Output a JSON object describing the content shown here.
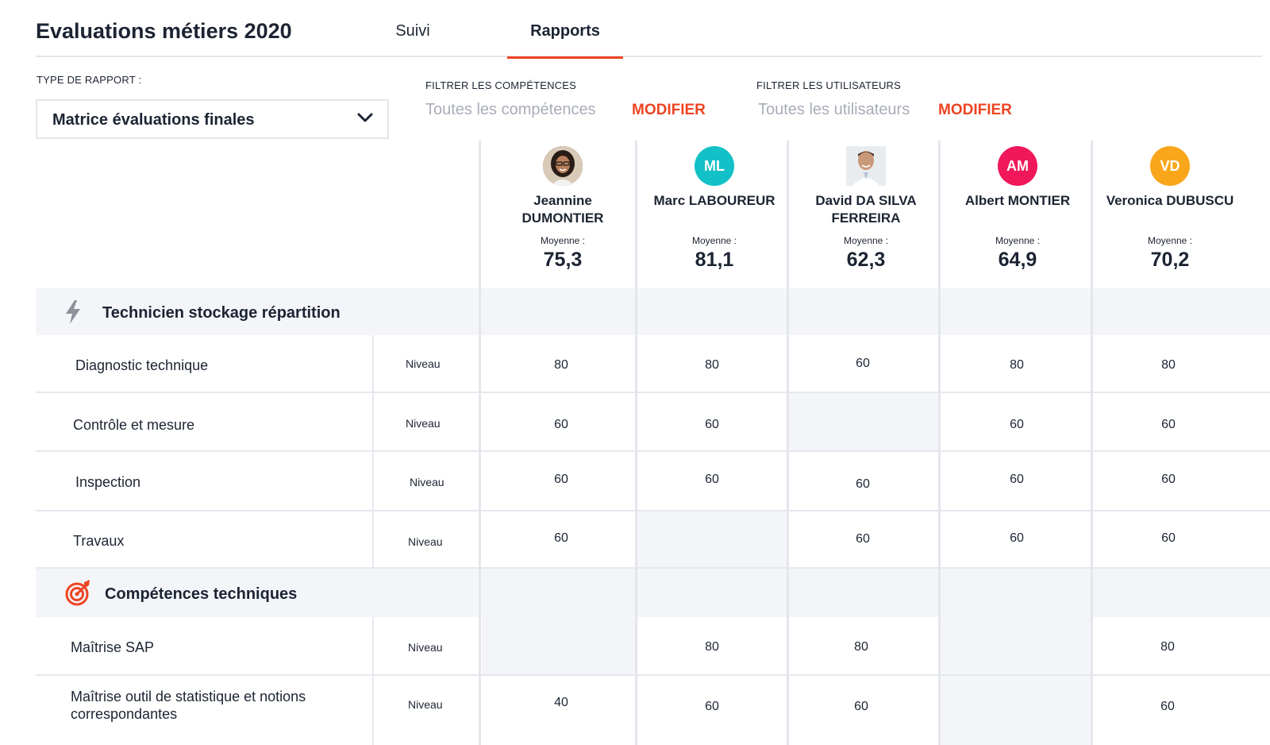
{
  "header": {
    "title": "Evaluations métiers 2020",
    "tabs": [
      {
        "label": "Suivi",
        "active": false
      },
      {
        "label": "Rapports",
        "active": true
      }
    ]
  },
  "filters": {
    "report_type_label": "TYPE DE RAPPORT :",
    "report_type_value": "Matrice évaluations finales",
    "skills_label": "FILTRER LES COMPÉTENCES",
    "skills_value": "Toutes les compétences",
    "users_label": "FILTRER LES UTILISATEURS",
    "users_value": "Toutes les utilisateurs",
    "modify_label": "MODIFIER"
  },
  "colors": {
    "accent": "#ee4422",
    "avatar_ml": "#12c0c7",
    "avatar_am": "#f0185a",
    "avatar_vd": "#f9a61b"
  },
  "users": [
    {
      "name": "Jeannine DUMONTIER",
      "initials": "",
      "avatar": "photo-female",
      "avg_label": "Moyenne :",
      "avg": "75,3"
    },
    {
      "name": "Marc LABOUREUR",
      "initials": "ML",
      "avatar": "initials",
      "avg_label": "Moyenne :",
      "avg": "81,1"
    },
    {
      "name": "David DA SILVA FERREIRA",
      "initials": "",
      "avatar": "photo-male",
      "avg_label": "Moyenne :",
      "avg": "62,3"
    },
    {
      "name": "Albert MONTIER",
      "initials": "AM",
      "avatar": "initials",
      "avg_label": "Moyenne :",
      "avg": "64,9"
    },
    {
      "name": "Veronica DUBUSCU",
      "initials": "VD",
      "avatar": "initials",
      "avg_label": "Moyenne :",
      "avg": "70,2"
    }
  ],
  "groups": [
    {
      "title": "Technicien stockage répartition",
      "icon": "lightning-icon",
      "skills": [
        {
          "name": "Diagnostic technique",
          "level_label": "Niveau",
          "values": [
            "80",
            "80",
            "60",
            "80",
            "80"
          ]
        },
        {
          "name": "Contrôle et mesure",
          "level_label": "Niveau",
          "values": [
            "60",
            "60",
            "",
            "60",
            "60"
          ]
        },
        {
          "name": "Inspection",
          "level_label": "Niveau",
          "values": [
            "60",
            "60",
            "60",
            "60",
            "60"
          ]
        },
        {
          "name": "Travaux",
          "level_label": "Niveau",
          "values": [
            "60",
            "",
            "60",
            "60",
            "60"
          ]
        }
      ]
    },
    {
      "title": "Compétences techniques",
      "icon": "target-icon",
      "skills": [
        {
          "name": "Maîtrise SAP",
          "level_label": "Niveau",
          "values": [
            "",
            "80",
            "80",
            "",
            "80"
          ]
        },
        {
          "name": "Maîtrise outil de statistique et notions correspondantes",
          "level_label": "Niveau",
          "values": [
            "40",
            "60",
            "60",
            "",
            "60"
          ]
        }
      ]
    }
  ]
}
